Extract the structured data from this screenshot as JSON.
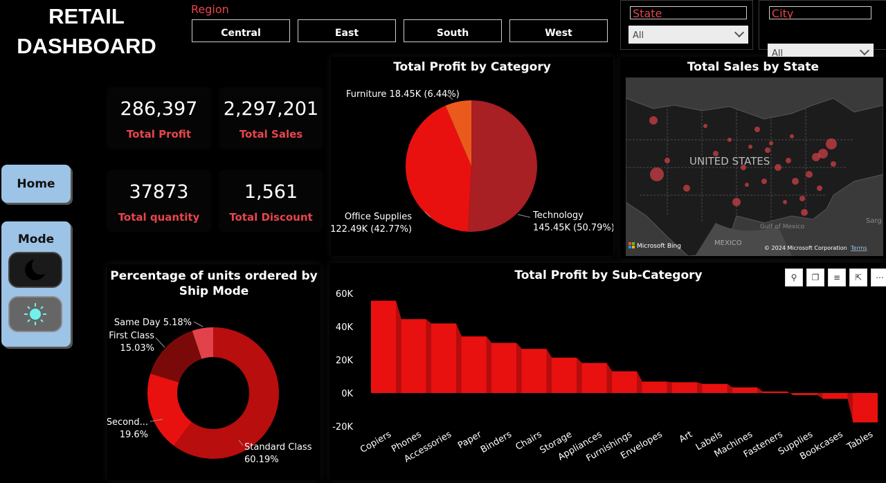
{
  "header": {
    "title_line1": "RETAIL",
    "title_line2": "DASHBOARD"
  },
  "region": {
    "label": "Region",
    "buttons": [
      "Central",
      "East",
      "South",
      "West"
    ]
  },
  "slicers": {
    "state": {
      "label": "State",
      "value": "All"
    },
    "city": {
      "label": "City",
      "value": "All"
    }
  },
  "kpis": [
    {
      "value": "286,397",
      "label": "Total Profit"
    },
    {
      "value": "2,297,201",
      "label": "Total Sales"
    },
    {
      "value": "37873",
      "label": "Total quantity"
    },
    {
      "value": "1,561",
      "label": "Total Discount"
    }
  ],
  "nav": {
    "home_label": "Home",
    "mode_label": "Mode",
    "dark_icon": "moon-icon",
    "light_icon": "sun-icon"
  },
  "colors": {
    "accent": "#e8454d",
    "tech": "#a81f24",
    "office": "#e8110f",
    "furniture": "#ea5a1c",
    "bar": "#e8110f",
    "bar_side": "#b50c0c",
    "nav": "#9dc3e6"
  },
  "map": {
    "title": "Total Sales by State",
    "country_label": "UNITED STATES",
    "gulf_label": "Gulf of Mexico",
    "mexico_label": "MEXICO",
    "sarg_label": "Sarg",
    "bing_label": "Microsoft Bing",
    "copyright": "© 2024 Microsoft Corporation",
    "terms": "Terms"
  },
  "visual_icons": [
    "pin-icon",
    "copy-icon",
    "filter-icon",
    "expand-icon",
    "more-icon"
  ],
  "chart_data": [
    {
      "type": "pie",
      "title": "Total Profit by Category",
      "slices": [
        {
          "name": "Technology",
          "value": 145.45,
          "percent": 50.79,
          "label_line1": "Technology",
          "label_line2": "145.45K (50.79%)"
        },
        {
          "name": "Office Supplies",
          "value": 122.49,
          "percent": 42.77,
          "label_line1": "Office Supplies",
          "label_line2": "122.49K (42.77%)"
        },
        {
          "name": "Furniture",
          "value": 18.45,
          "percent": 6.44,
          "label_line1": "Furniture 18.45K (6.44%)",
          "label_line2": ""
        }
      ]
    },
    {
      "type": "pie",
      "subtype": "donut",
      "title_line1": "Percentage of units ordered by",
      "title_line2": "Ship Mode",
      "slices": [
        {
          "name": "Standard Class",
          "percent": 60.19,
          "color": "#b80e0e",
          "label_line1": "Standard Class",
          "label_line2": "60.19%"
        },
        {
          "name": "Second...",
          "percent": 19.6,
          "color": "#e8110f",
          "label_line1": "Second...",
          "label_line2": "19.6%"
        },
        {
          "name": "First Class",
          "percent": 15.03,
          "color": "#7a0a0a",
          "label_line1": "First Class",
          "label_line2": "15.03%"
        },
        {
          "name": "Same Day",
          "percent": 5.18,
          "color": "#e2424a",
          "label_line1": "Same Day 5.18%",
          "label_line2": ""
        }
      ]
    },
    {
      "type": "bar",
      "title": "Total Profit by Sub-Category",
      "categories": [
        "Copiers",
        "Phones",
        "Accessories",
        "Paper",
        "Binders",
        "Chairs",
        "Storage",
        "Appliances",
        "Furnishings",
        "Envelopes",
        "Art",
        "Labels",
        "Machines",
        "Fasteners",
        "Supplies",
        "Bookcases",
        "Tables"
      ],
      "values": [
        55600,
        44500,
        41900,
        34100,
        30200,
        26600,
        21300,
        18100,
        13100,
        6900,
        6500,
        5500,
        3400,
        950,
        -1200,
        -3500,
        -17700
      ],
      "yticks": [
        "60K",
        "40K",
        "20K",
        "0K",
        "-20K"
      ],
      "ylim": [
        -20000,
        60000
      ]
    }
  ]
}
